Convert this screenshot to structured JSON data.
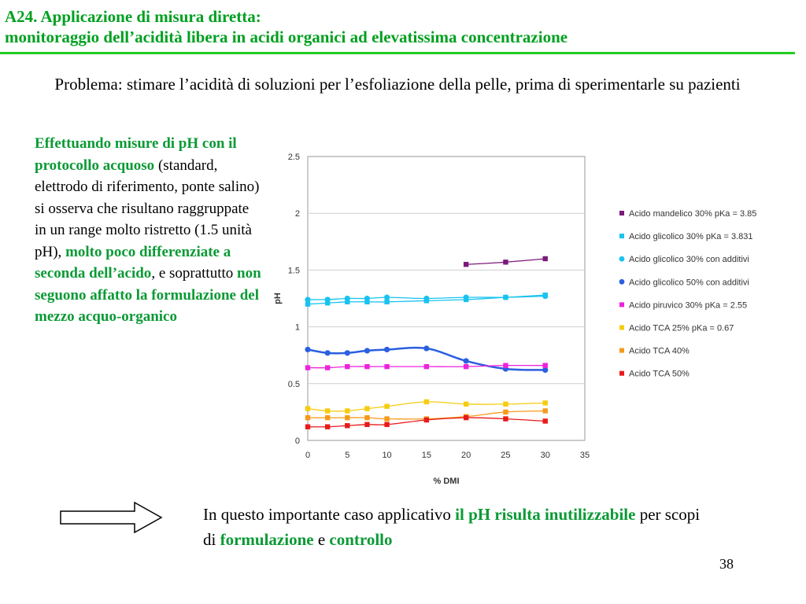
{
  "slide": {
    "title_line1": "A24. Applicazione di misura diretta:",
    "title_line2": "monitoraggio dell’acidità libera in acidi organici ad elevatissima concentrazione",
    "problem": "Problema: stimare l’acidità di soluzioni per l’esfoliazione della pelle, prima di sperimentarle su pazienti",
    "left": {
      "p1": "Effettuando misure di pH con il protocollo acquoso",
      "p2": " (standard, elettrodo di riferimento, ponte salino) si osserva che risultano raggruppate in un range molto ristretto (1.5 unità pH), ",
      "p3": "molto poco differenziate a seconda dell’acido",
      "p4": ", e soprattutto ",
      "p5": "non seguono affatto la formulazione del mezzo acquo-organico"
    },
    "bottom": {
      "t1": "In questo importante caso applicativo ",
      "t2": "il pH risulta inutilizzabile",
      "t3": " per scopi di ",
      "t4": "formulazione",
      "t5": " e ",
      "t6": "controllo"
    },
    "page_number": "38"
  },
  "chart_data": {
    "type": "line",
    "xlabel": "% DMI",
    "ylabel": "pH",
    "xlim": [
      0,
      35
    ],
    "ylim": [
      0,
      2.5
    ],
    "xticks": [
      0,
      5,
      10,
      15,
      20,
      25,
      30,
      35
    ],
    "yticks": [
      0,
      0.5,
      1,
      1.5,
      2,
      2.5
    ],
    "ytick_labels": [
      "0",
      "0.5",
      "1",
      "1.5",
      "2",
      "2.5"
    ],
    "grid": "horizontal",
    "legend_position": "right",
    "series": [
      {
        "name": "Acido mandelico 30% pKa = 3.85",
        "color": "#7b1a7b",
        "marker": "square",
        "x": [
          20,
          25,
          30
        ],
        "y": [
          1.55,
          1.57,
          1.6
        ]
      },
      {
        "name": "Acido glicolico 30% pKa = 3.831",
        "color": "#19c3f0",
        "marker": "square",
        "x": [
          0,
          2.5,
          5,
          7.5,
          10,
          15,
          20,
          25,
          30
        ],
        "y": [
          1.2,
          1.21,
          1.22,
          1.22,
          1.22,
          1.23,
          1.24,
          1.26,
          1.28
        ]
      },
      {
        "name": "Acido glicolico 30% con additivi",
        "color": "#19c3f0",
        "marker": "circle",
        "x": [
          0,
          2.5,
          5,
          7.5,
          10,
          15,
          20,
          25,
          30
        ],
        "y": [
          1.24,
          1.24,
          1.25,
          1.25,
          1.26,
          1.25,
          1.26,
          1.26,
          1.27
        ]
      },
      {
        "name": "Acido glicolico 50% con additivi",
        "color": "#2a5fe0",
        "marker": "circle",
        "x": [
          0,
          2.5,
          5,
          7.5,
          10,
          15,
          20,
          25,
          30
        ],
        "y": [
          0.8,
          0.77,
          0.77,
          0.79,
          0.8,
          0.81,
          0.7,
          0.63,
          0.62
        ]
      },
      {
        "name": "Acido piruvico 30% pKa = 2.55",
        "color": "#ee22dd",
        "marker": "square",
        "x": [
          0,
          2.5,
          5,
          7.5,
          10,
          15,
          20,
          25,
          30
        ],
        "y": [
          0.64,
          0.64,
          0.65,
          0.65,
          0.65,
          0.65,
          0.65,
          0.66,
          0.66
        ]
      },
      {
        "name": "Acido TCA 25% pKa = 0.67",
        "color": "#f5cc10",
        "marker": "square",
        "x": [
          0,
          2.5,
          5,
          7.5,
          10,
          15,
          20,
          25,
          30
        ],
        "y": [
          0.28,
          0.26,
          0.26,
          0.28,
          0.3,
          0.34,
          0.32,
          0.32,
          0.33
        ]
      },
      {
        "name": "Acido TCA 40%",
        "color": "#f59a1a",
        "marker": "square",
        "x": [
          0,
          2.5,
          5,
          7.5,
          10,
          15,
          20,
          25,
          30
        ],
        "y": [
          0.2,
          0.2,
          0.2,
          0.2,
          0.19,
          0.19,
          0.21,
          0.25,
          0.26
        ]
      },
      {
        "name": "Acido TCA 50%",
        "color": "#e81a1a",
        "marker": "square",
        "x": [
          0,
          2.5,
          5,
          7.5,
          10,
          15,
          20,
          25,
          30
        ],
        "y": [
          0.12,
          0.12,
          0.13,
          0.14,
          0.14,
          0.18,
          0.2,
          0.19,
          0.17
        ]
      }
    ]
  }
}
